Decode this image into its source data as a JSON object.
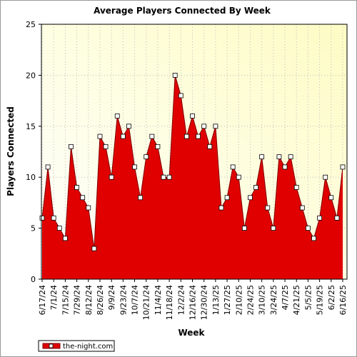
{
  "chart_data": {
    "type": "area",
    "title": "Average Players Connected By Week",
    "x_label": "Week",
    "y_label": "Players Connected",
    "categories": [
      "6/17/24",
      null,
      "7/1/24",
      null,
      "7/15/24",
      null,
      "7/29/24",
      null,
      "8/12/24",
      null,
      "8/26/24",
      null,
      "9/9/24",
      null,
      "9/23/24",
      null,
      "10/7/24",
      null,
      "10/21/24",
      null,
      "11/4/24",
      null,
      "11/18/24",
      null,
      "12/2/24",
      null,
      "12/16/24",
      null,
      "12/30/24",
      null,
      "1/13/25",
      null,
      "1/27/25",
      null,
      "2/10/25",
      null,
      "2/24/25",
      null,
      "3/10/25",
      null,
      "3/24/25",
      null,
      "4/7/25",
      null,
      "4/21/25",
      null,
      "5/5/25",
      null,
      "5/19/25",
      null,
      "6/2/25",
      null,
      "6/16/25"
    ],
    "series": [
      {
        "name": "the-night.com",
        "color": "#e00000",
        "values": [
          6,
          11,
          6,
          5,
          4,
          13,
          9,
          8,
          7,
          3,
          14,
          13,
          10,
          16,
          14,
          15,
          11,
          8,
          12,
          14,
          13,
          10,
          10,
          20,
          18,
          14,
          16,
          14,
          15,
          13,
          15,
          7,
          8,
          11,
          10,
          5,
          8,
          9,
          12,
          7,
          5,
          12,
          11,
          12,
          9,
          7,
          5,
          4,
          6,
          10,
          8,
          6,
          11
        ]
      }
    ],
    "ylim": [
      0,
      25
    ],
    "yticks": [
      0,
      5,
      10,
      15,
      20,
      25
    ],
    "grid": true
  }
}
